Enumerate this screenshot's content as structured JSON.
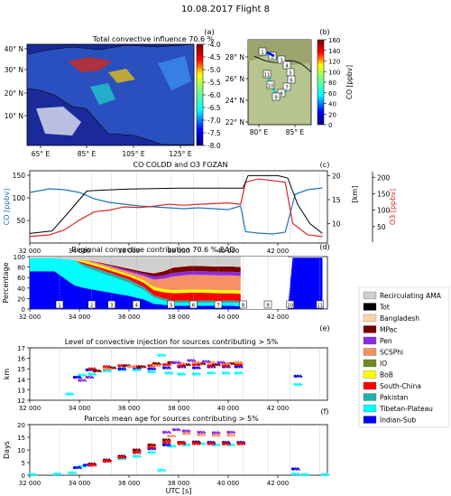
{
  "figure_title": "10.08.2017   Flight 8",
  "colors": {
    "co": "#1f77b4",
    "o3": "#d62728",
    "alt": "#000000",
    "map_land": "#2a4fbf",
    "map_ocean": "#1a2a9a"
  },
  "panel_a": {
    "letter": "(a)",
    "title": "Total convective influence  70.6 %",
    "x_ticks": [
      "65° E",
      "85° E",
      "105° E",
      "125° E"
    ],
    "y_ticks": [
      "40° N",
      "30° N",
      "20° N",
      "10° N"
    ],
    "colorbar_ticks": [
      "-4.0",
      "-4.5",
      "-5.0",
      "-5.5",
      "-6.0",
      "-6.5",
      "-7.0",
      "-7.5",
      "-8.0"
    ]
  },
  "panel_b": {
    "letter": "(b)",
    "x_ticks": [
      "80° E",
      "85° E"
    ],
    "y_ticks": [
      "28° N",
      "26° N",
      "24° N",
      "22° N"
    ],
    "colorbar_label": "CO [ppbv]",
    "colorbar_ticks": [
      "160",
      "140",
      "120",
      "100",
      "80",
      "60",
      "40",
      "20",
      "0"
    ],
    "waypoints": [
      "1",
      "2",
      "3",
      "4",
      "5",
      "6",
      "7",
      "8",
      "9",
      "10",
      "11"
    ]
  },
  "chart_data": [
    {
      "id": "c",
      "type": "line",
      "letter": "(c)",
      "title": "CO COLDD and O3 FOZAN",
      "ylabel_left": "CO [ppbv]",
      "ylabel_right_km": "[km]",
      "ylabel_o3": "O3 [ppbv]",
      "left_ticks": [
        "50",
        "100",
        "150"
      ],
      "right_km_ticks": [
        "10",
        "15",
        "20"
      ],
      "o3_ticks": [
        "50",
        "100",
        "150",
        "200"
      ],
      "xlim": [
        32000,
        44000
      ],
      "series": [
        {
          "name": "CO",
          "x": [
            32000,
            32800,
            33400,
            34000,
            34600,
            35200,
            35800,
            36400,
            37000,
            37600,
            38200,
            38800,
            39400,
            40000,
            40500,
            40700,
            41200,
            41800,
            42300,
            42700,
            43200,
            43800
          ],
          "values": [
            112,
            120,
            118,
            112,
            98,
            90,
            86,
            82,
            80,
            78,
            76,
            78,
            76,
            74,
            82,
            25,
            22,
            20,
            24,
            108,
            118,
            122
          ]
        },
        {
          "name": "O3",
          "x": [
            32000,
            32800,
            33400,
            34000,
            34600,
            35200,
            35800,
            36400,
            37000,
            37600,
            38200,
            38800,
            39400,
            40000,
            40500,
            40700,
            41200,
            41800,
            42300,
            42600,
            43200,
            43800
          ],
          "values": [
            20,
            25,
            40,
            70,
            95,
            100,
            110,
            108,
            112,
            118,
            115,
            118,
            120,
            122,
            118,
            185,
            195,
            190,
            185,
            60,
            25,
            20
          ]
        },
        {
          "name": "Altitude",
          "x": [
            32000,
            32900,
            33500,
            34000,
            34300,
            35000,
            36000,
            37000,
            38000,
            39000,
            40000,
            40600,
            40800,
            41500,
            42000,
            42400,
            42800,
            43300,
            43800
          ],
          "values": [
            8,
            8.5,
            12,
            15,
            16.8,
            17,
            17.2,
            17.3,
            17.4,
            17.4,
            17.4,
            17.4,
            20,
            20,
            20,
            19.5,
            14,
            10,
            8
          ]
        }
      ]
    },
    {
      "id": "d",
      "type": "area",
      "letter": "(d)",
      "title": "Regional convective contribution  70.6 % EAD",
      "ylabel": "Percentage",
      "yticks": [
        "0",
        "20",
        "40",
        "60",
        "80",
        "100"
      ],
      "xlim": [
        32000,
        44000
      ],
      "x": [
        32000,
        33000,
        33800,
        34200,
        34800,
        35400,
        36000,
        36600,
        37000,
        37400,
        37800,
        38400,
        39000,
        39600,
        40200,
        40500,
        42400,
        42600,
        43000,
        43800
      ],
      "layers": [
        {
          "name": "Indian-Sub",
          "values": [
            72,
            72,
            45,
            40,
            35,
            30,
            25,
            18,
            10,
            8,
            6,
            6,
            6,
            6,
            6,
            5,
            0,
            98,
            98,
            98
          ]
        },
        {
          "name": "Tibetan-Plateau",
          "values": [
            25,
            25,
            48,
            40,
            35,
            30,
            25,
            18,
            12,
            8,
            6,
            6,
            6,
            6,
            6,
            6,
            0,
            0,
            0,
            0
          ]
        },
        {
          "name": "Pakistan",
          "values": [
            0,
            0,
            0,
            5,
            6,
            6,
            6,
            6,
            4,
            4,
            4,
            4,
            4,
            4,
            4,
            4,
            0,
            0,
            0,
            0
          ]
        },
        {
          "name": "South-China",
          "values": [
            0,
            0,
            0,
            3,
            4,
            5,
            6,
            8,
            10,
            12,
            14,
            15,
            15,
            14,
            14,
            14,
            0,
            0,
            0,
            0
          ]
        },
        {
          "name": "BoB",
          "values": [
            0,
            0,
            0,
            4,
            4,
            4,
            4,
            5,
            6,
            6,
            6,
            6,
            6,
            6,
            6,
            6,
            0,
            0,
            0,
            0
          ]
        },
        {
          "name": "IO",
          "values": [
            0,
            0,
            0,
            0,
            0,
            0,
            0,
            0,
            0,
            0,
            0,
            0,
            0,
            0,
            0,
            0,
            0,
            0,
            0,
            0
          ]
        },
        {
          "name": "SCSPhi",
          "values": [
            0,
            0,
            0,
            2,
            3,
            4,
            5,
            8,
            14,
            20,
            26,
            28,
            28,
            28,
            28,
            28,
            0,
            0,
            0,
            0
          ]
        },
        {
          "name": "Pen",
          "values": [
            0,
            0,
            0,
            0,
            1,
            2,
            3,
            4,
            6,
            6,
            7,
            7,
            7,
            7,
            7,
            7,
            0,
            0,
            0,
            0
          ]
        },
        {
          "name": "MPac",
          "values": [
            0,
            0,
            0,
            0,
            1,
            2,
            3,
            4,
            6,
            8,
            10,
            10,
            10,
            10,
            10,
            10,
            0,
            0,
            0,
            0
          ]
        },
        {
          "name": "Bangladesh",
          "values": [
            0,
            0,
            0,
            1,
            1,
            1,
            1,
            1,
            1,
            1,
            1,
            1,
            1,
            1,
            1,
            1,
            0,
            0,
            0,
            0
          ]
        },
        {
          "name": "Tot",
          "values": [
            0,
            0,
            0,
            0,
            0,
            0,
            0,
            0,
            0,
            0,
            0,
            0,
            0,
            0,
            0,
            0,
            0,
            0,
            0,
            0
          ]
        },
        {
          "name": "Recirculating AMA",
          "values": [
            3,
            3,
            7,
            5,
            10,
            16,
            22,
            28,
            31,
            27,
            20,
            17,
            17,
            18,
            18,
            19,
            0,
            2,
            2,
            2
          ]
        }
      ],
      "segment_labels": [
        "1",
        "2",
        "3",
        "4",
        "5",
        "6",
        "7",
        "8",
        "9",
        "10",
        "11"
      ],
      "segment_x": [
        33200,
        34500,
        35300,
        36300,
        37700,
        38600,
        39600,
        40600,
        41600,
        42500,
        43700
      ]
    },
    {
      "id": "e",
      "type": "scatter",
      "letter": "(e)",
      "title": "Level of convective injection for sources contributing > 5%",
      "ylabel": "km",
      "yticks": [
        "12",
        "13",
        "14",
        "15",
        "16",
        "17"
      ],
      "ylim": [
        12,
        17
      ],
      "xlim": [
        32000,
        44000
      ],
      "series": [
        {
          "name": "Tibetan-Plateau",
          "x": [
            33500,
            34000,
            34400,
            35000,
            35600,
            36200,
            36800,
            37200,
            37500,
            38000,
            38600,
            39200,
            39800,
            40300,
            42700
          ],
          "values": [
            12.6,
            14.4,
            14.5,
            14.8,
            14.9,
            14.9,
            14.7,
            16.3,
            14.6,
            14.5,
            14.5,
            14.6,
            14.6,
            14.6,
            13.5
          ]
        },
        {
          "name": "Indian-Sub",
          "x": [
            33800,
            34300,
            35000,
            35600,
            36200,
            36800,
            37400,
            38000,
            38600,
            39200,
            39800,
            40300,
            42700
          ],
          "values": [
            14.2,
            14.9,
            15.0,
            15.0,
            15.1,
            15.0,
            15.1,
            15.2,
            15.1,
            15.2,
            15.2,
            15.2,
            14.3
          ]
        },
        {
          "name": "South-China",
          "x": [
            34400,
            35000,
            35600,
            36200,
            36800,
            37400,
            38000,
            38600,
            39200,
            39800,
            40300
          ],
          "values": [
            15.0,
            15.2,
            15.3,
            15.2,
            15.3,
            15.4,
            15.3,
            15.4,
            15.3,
            15.3,
            15.4
          ]
        },
        {
          "name": "MPac",
          "x": [
            34600,
            35200,
            35800,
            36400,
            37000,
            37600,
            38200,
            38800,
            39400,
            40000
          ],
          "values": [
            14.8,
            15.1,
            15.3,
            15.2,
            15.5,
            15.6,
            15.4,
            15.5,
            15.4,
            15.5
          ]
        },
        {
          "name": "SCSPhi",
          "x": [
            35000,
            36000,
            37000,
            38000,
            38600,
            39200,
            39800,
            40300
          ],
          "values": [
            15.0,
            15.2,
            15.3,
            15.5,
            15.6,
            15.6,
            15.5,
            15.6
          ]
        },
        {
          "name": "Pen",
          "x": [
            34000,
            34300,
            37800,
            38400,
            39000,
            39600
          ],
          "values": [
            13.9,
            14.2,
            15.6,
            15.8,
            15.7,
            15.6
          ]
        }
      ]
    },
    {
      "id": "f",
      "type": "scatter",
      "letter": "(f)",
      "title": "Parcels mean age for sources contributing > 5%",
      "ylabel": "Days",
      "yticks": [
        "0",
        "5",
        "10",
        "15",
        "20"
      ],
      "ylim": [
        0,
        20
      ],
      "xlabel": "UTC [s]",
      "xticks": [
        "32 000",
        "34 000",
        "36 000",
        "38 000",
        "40 000",
        "42 000"
      ],
      "xlim": [
        32000,
        44000
      ],
      "series": [
        {
          "name": "Tibetan-Plateau",
          "x": [
            32000,
            33000,
            33600,
            34000,
            34400,
            35000,
            35600,
            36200,
            36800,
            37200,
            37600,
            38200,
            38800,
            39400,
            40000,
            42600,
            43000,
            43800
          ],
          "values": [
            0.3,
            0.5,
            1.0,
            3.5,
            4.0,
            5.5,
            6.5,
            7.5,
            9.0,
            2.0,
            11.5,
            12.0,
            12.5,
            12.0,
            12.0,
            0.5,
            0.3,
            0.3
          ]
        },
        {
          "name": "Indian-Sub",
          "x": [
            33800,
            34200,
            35000,
            35600,
            36200,
            36800,
            37400,
            38000,
            38600,
            39200,
            39800,
            40400,
            42600
          ],
          "values": [
            3.0,
            4.0,
            6.0,
            7.5,
            9.0,
            10.5,
            12.0,
            13.0,
            13.2,
            13.0,
            13.0,
            13.0,
            2.5
          ]
        },
        {
          "name": "MPac",
          "x": [
            34400,
            35000,
            35600,
            36200,
            36800,
            37400,
            38000,
            38600,
            39200,
            39800,
            40400
          ],
          "values": [
            4.5,
            6.0,
            7.5,
            10.0,
            12.0,
            14.0,
            13.0,
            13.0,
            12.5,
            12.5,
            12.5
          ]
        },
        {
          "name": "South-China",
          "x": [
            34400,
            35000,
            35600,
            36200,
            36800,
            37400,
            38000,
            38600,
            39200,
            39800,
            40400
          ],
          "values": [
            4.0,
            5.5,
            7.0,
            9.0,
            11.0,
            13.0,
            12.5,
            12.5,
            12.5,
            12.4,
            12.5
          ]
        },
        {
          "name": "Pen",
          "x": [
            37400,
            37800,
            38200,
            38800,
            39400,
            40000
          ],
          "values": [
            17.0,
            18.0,
            17.5,
            17.0,
            16.8,
            17.0
          ]
        },
        {
          "name": "SCSPhi",
          "x": [
            37600,
            38200,
            38800,
            39400,
            40000
          ],
          "values": [
            15.5,
            16.5,
            16.0,
            15.8,
            15.8
          ]
        }
      ]
    }
  ],
  "legend": [
    {
      "name": "Recirculating AMA",
      "color": "#cfcfcf"
    },
    {
      "name": "Tot",
      "color": "#000000"
    },
    {
      "name": "Bangladesh",
      "color": "#ffd5a8"
    },
    {
      "name": "MPac",
      "color": "#7a0000"
    },
    {
      "name": "Pen",
      "color": "#8a2be2"
    },
    {
      "name": "SCSPhi",
      "color": "#f79063"
    },
    {
      "name": "IO",
      "color": "#6b8e23"
    },
    {
      "name": "BoB",
      "color": "#ffff00"
    },
    {
      "name": "South-China",
      "color": "#ff0000"
    },
    {
      "name": "Pakistan",
      "color": "#20b2aa"
    },
    {
      "name": "Tibetan-Plateau",
      "color": "#00ffff"
    },
    {
      "name": "Indian-Sub",
      "color": "#0000ff"
    }
  ]
}
